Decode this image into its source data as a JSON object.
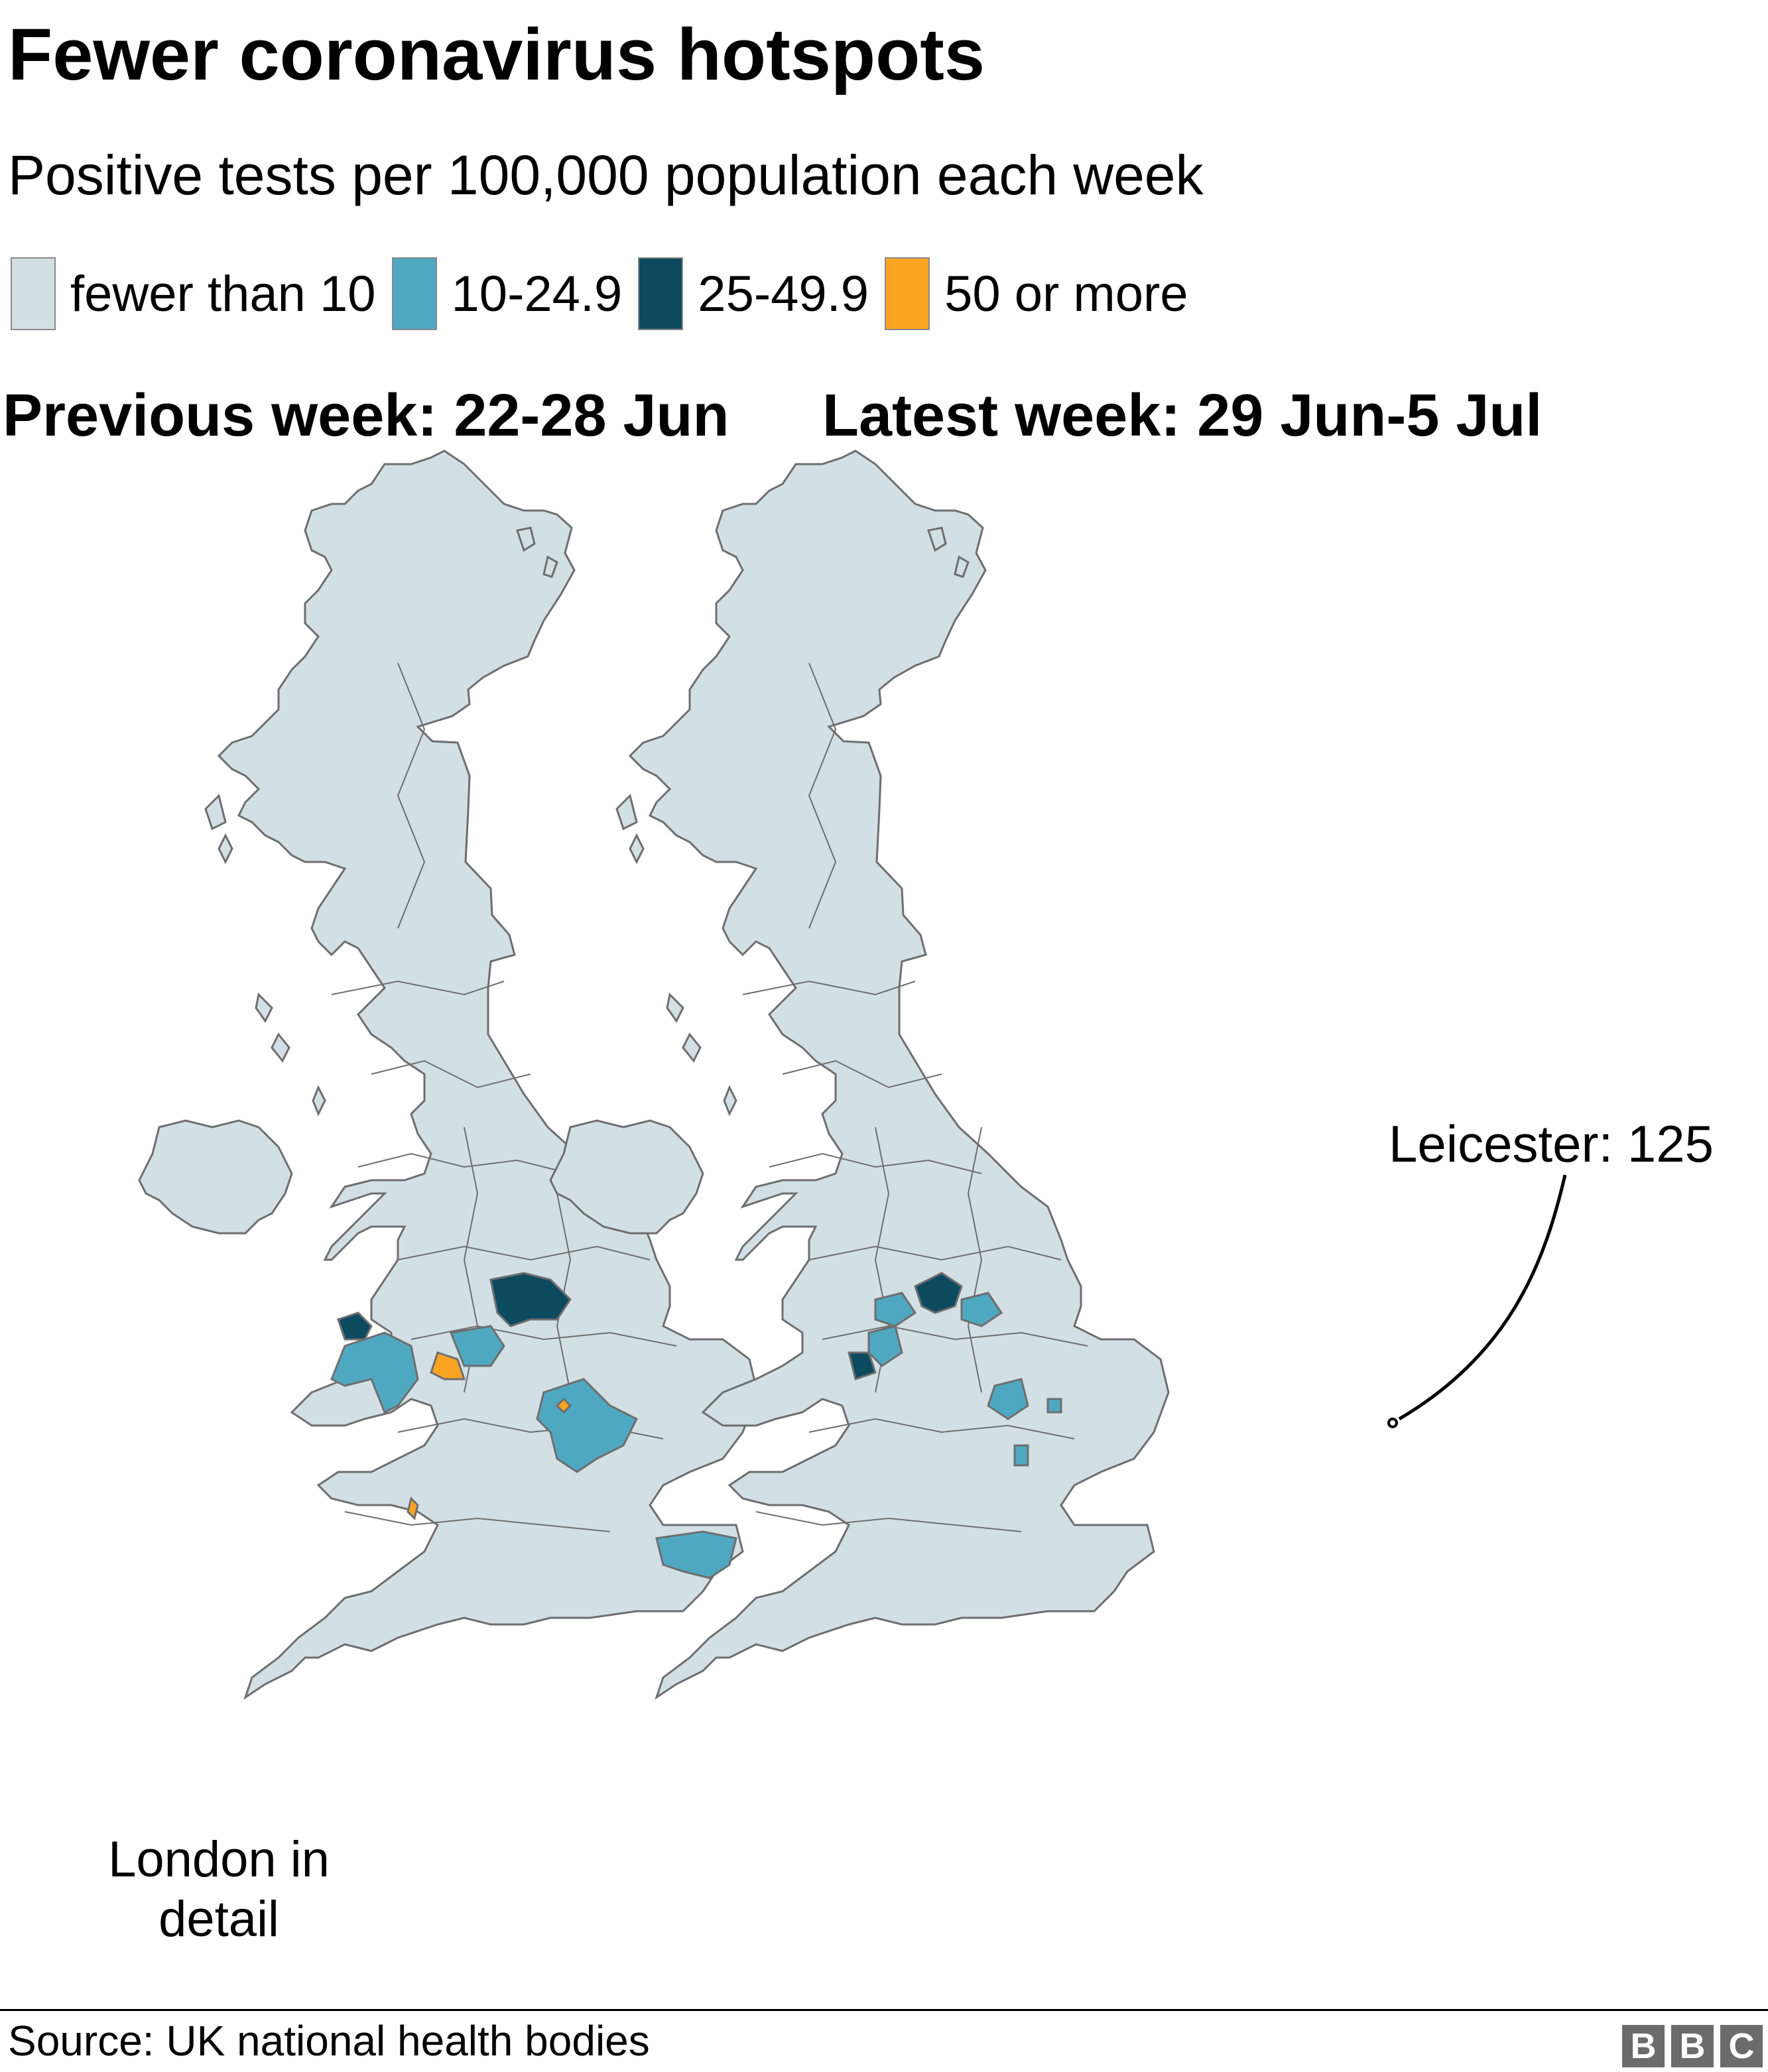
{
  "title": "Fewer coronavirus hotspots",
  "subtitle": "Positive tests per 100,000 population each week",
  "legend": [
    {
      "label": "fewer than 10",
      "color": "#d2e0e6"
    },
    {
      "label": "10-24.9",
      "color": "#4fa8c2"
    },
    {
      "label": "25-49.9",
      "color": "#0b4a5f"
    },
    {
      "label": "50 or more",
      "color": "#fba422"
    }
  ],
  "maps": [
    {
      "week_title": "Previous week: 22-28 Jun"
    },
    {
      "week_title": "Latest week: 29 Jun-5 Jul",
      "annotation": "Leicester: 125"
    }
  ],
  "london_label_line1": "London in",
  "london_label_line2": "detail",
  "source": "Source: UK national health bodies",
  "logo": [
    "B",
    "B",
    "C"
  ]
}
